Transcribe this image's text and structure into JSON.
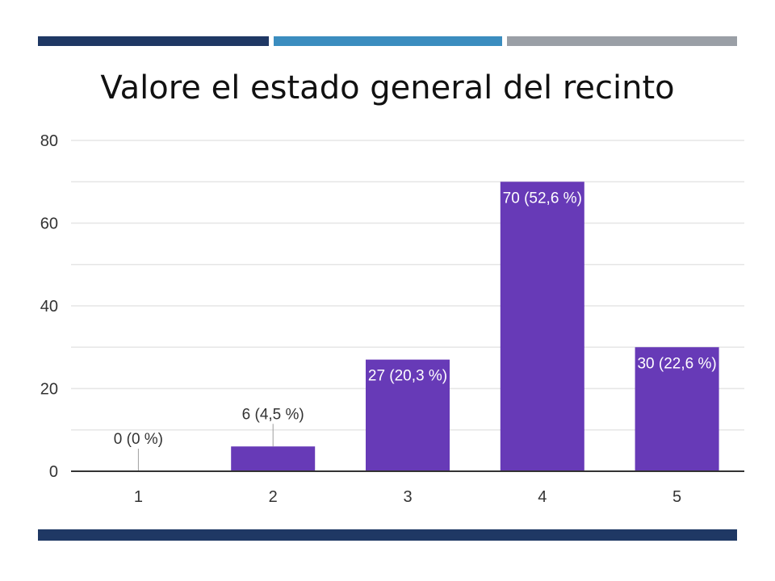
{
  "slide": {
    "title": "Valore el estado general del recinto",
    "colors": {
      "top_bar_1": "#1f3864",
      "top_bar_2": "#3b8dbf",
      "top_bar_3": "#9a9fa6",
      "bottom_bar": "#1f3864"
    }
  },
  "chart_data": {
    "type": "bar",
    "title": "",
    "xlabel": "",
    "ylabel": "",
    "categories": [
      "1",
      "2",
      "3",
      "4",
      "5"
    ],
    "values": [
      0,
      6,
      27,
      70,
      30
    ],
    "data_labels": [
      "0 (0 %)",
      "6 (4,5 %)",
      "27 (20,3 %)",
      "70 (52,6 %)",
      "30 (22,6 %)"
    ],
    "ylim": [
      0,
      80
    ],
    "yticks": [
      0,
      20,
      40,
      60,
      80
    ],
    "grid": true,
    "bar_color": "#673ab7"
  }
}
